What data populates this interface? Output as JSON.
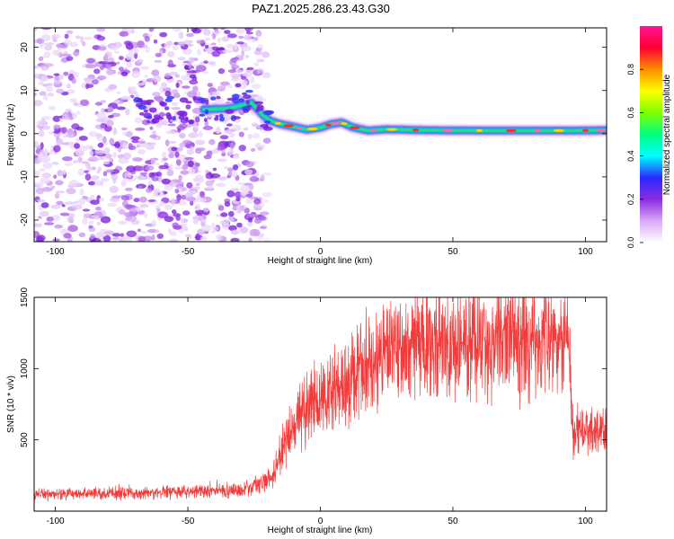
{
  "title": "PAZ1.2025.286.23.43.G30",
  "chart_data": [
    {
      "type": "heatmap",
      "xlabel": "Height of straight line (km)",
      "ylabel": "Frequency (Hz)",
      "xlim": [
        -108,
        108
      ],
      "ylim": [
        -25,
        24.5
      ],
      "xticks": [
        -100,
        -50,
        0,
        50,
        100
      ],
      "yticks": [
        -20,
        -10,
        0,
        10,
        20
      ],
      "ridge": [
        {
          "x": -44,
          "y": 5.6
        },
        {
          "x": -35,
          "y": 5.8
        },
        {
          "x": -30,
          "y": 6.5
        },
        {
          "x": -26,
          "y": 7.2
        },
        {
          "x": -22,
          "y": 4.5
        },
        {
          "x": -19,
          "y": 3.0
        },
        {
          "x": -15,
          "y": 2.2
        },
        {
          "x": -10,
          "y": 1.6
        },
        {
          "x": -5,
          "y": 0.9
        },
        {
          "x": 0,
          "y": 1.4
        },
        {
          "x": 4,
          "y": 2.2
        },
        {
          "x": 8,
          "y": 2.6
        },
        {
          "x": 12,
          "y": 1.5
        },
        {
          "x": 18,
          "y": 0.7
        },
        {
          "x": 25,
          "y": 1.0
        },
        {
          "x": 40,
          "y": 0.8
        },
        {
          "x": 60,
          "y": 0.7
        },
        {
          "x": 80,
          "y": 0.7
        },
        {
          "x": 95,
          "y": 0.7
        },
        {
          "x": 108,
          "y": 0.8
        }
      ],
      "noise_region": {
        "x_from": -108,
        "x_to": -20
      },
      "colorbar": {
        "label": "Normalized spectral amplitude",
        "range": [
          0,
          1
        ],
        "ticks": [
          "0.0",
          "0.2",
          "0.4",
          "0.6",
          "0.8"
        ],
        "colors": [
          "#ffffff",
          "#d9a8f5",
          "#8a2be2",
          "#2a2aff",
          "#00ffff",
          "#00ff7f",
          "#7fff00",
          "#ffff00",
          "#ff8c00",
          "#ff0033",
          "#ff1493"
        ]
      }
    },
    {
      "type": "line",
      "xlabel": "Height of straight line (km)",
      "ylabel": "SNR (10 * v/v)",
      "xlim": [
        -108,
        108
      ],
      "ylim": [
        0,
        1500
      ],
      "xticks": [
        -100,
        -50,
        0,
        50,
        100
      ],
      "yticks": [
        500,
        1000,
        1500
      ],
      "series_color": "#f23c3c",
      "trend": [
        {
          "x": -108,
          "y": 120
        },
        {
          "x": -60,
          "y": 130
        },
        {
          "x": -30,
          "y": 150
        },
        {
          "x": -22,
          "y": 200
        },
        {
          "x": -18,
          "y": 230
        },
        {
          "x": -15,
          "y": 400
        },
        {
          "x": -10,
          "y": 600
        },
        {
          "x": -5,
          "y": 720
        },
        {
          "x": 0,
          "y": 800
        },
        {
          "x": 10,
          "y": 870
        },
        {
          "x": 15,
          "y": 950
        },
        {
          "x": 20,
          "y": 1060
        },
        {
          "x": 25,
          "y": 1150
        },
        {
          "x": 40,
          "y": 1170
        },
        {
          "x": 60,
          "y": 1190
        },
        {
          "x": 80,
          "y": 1200
        },
        {
          "x": 94,
          "y": 1190
        },
        {
          "x": 95,
          "y": 560
        },
        {
          "x": 108,
          "y": 560
        }
      ]
    }
  ]
}
